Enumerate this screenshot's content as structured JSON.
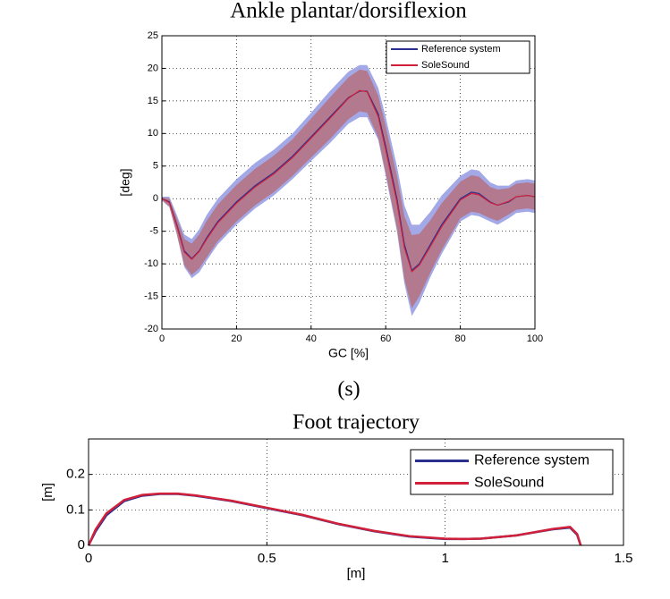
{
  "chart_data": [
    {
      "type": "line",
      "title": "Ankle plantar/dorsiflexion",
      "x_label": "GC [%]",
      "y_label": "[deg]",
      "x": [
        0,
        2,
        4,
        6,
        8,
        10,
        12,
        15,
        20,
        25,
        30,
        35,
        40,
        45,
        50,
        53,
        55,
        58,
        60,
        63,
        65,
        67,
        69,
        72,
        75,
        80,
        83,
        85,
        88,
        90,
        93,
        95,
        98,
        100
      ],
      "xlim": [
        0,
        100
      ],
      "xticks": [
        0,
        20,
        40,
        60,
        80,
        100
      ],
      "ylim": [
        -20,
        25
      ],
      "yticks": [
        -20,
        -15,
        -10,
        -5,
        0,
        5,
        10,
        15,
        20,
        25
      ],
      "grid": true,
      "legend": "upper right",
      "series": [
        {
          "name": "Reference system",
          "color": "#2b2f8f",
          "band_color": "#a3a8e6",
          "values": [
            0,
            -0.5,
            -4,
            -8,
            -9.2,
            -8,
            -6,
            -3.5,
            -0.5,
            2,
            4,
            6.5,
            9.5,
            12.5,
            15.5,
            16.5,
            16.5,
            13,
            8,
            0,
            -7,
            -11,
            -10,
            -7,
            -4,
            0,
            1,
            0.8,
            -0.5,
            -1,
            -0.5,
            0.3,
            0.5,
            0.3
          ],
          "std": [
            0.3,
            0.8,
            1.5,
            2.5,
            3,
            3.3,
            3.5,
            3.5,
            3.5,
            3.5,
            3.5,
            3.5,
            3.7,
            4,
            4,
            4,
            4,
            4,
            4.5,
            5,
            6,
            7,
            6,
            5,
            4.5,
            3.5,
            3.5,
            3.5,
            3,
            3,
            2.5,
            2.5,
            2.5,
            2.5
          ]
        },
        {
          "name": "SoleSound",
          "color": "#d0203a",
          "band_color": "#b86a72",
          "values": [
            0,
            -0.6,
            -4.2,
            -8.2,
            -9.3,
            -8.1,
            -6.2,
            -3.7,
            -0.7,
            1.8,
            3.8,
            6.3,
            9.3,
            12.3,
            15.4,
            16.6,
            16.4,
            12.6,
            7.5,
            -0.5,
            -7.5,
            -11.2,
            -10.2,
            -7.3,
            -4.3,
            -0.2,
            0.8,
            0.6,
            -0.6,
            -1,
            -0.4,
            0.3,
            0.5,
            0.3
          ],
          "std": [
            0.2,
            0.6,
            1.2,
            2,
            2.4,
            2.6,
            2.8,
            2.8,
            2.8,
            2.8,
            2.8,
            2.8,
            3,
            3.2,
            3.2,
            3.2,
            3.2,
            3.2,
            3.6,
            4,
            4.8,
            5.6,
            4.8,
            4,
            3.6,
            2.8,
            2.8,
            2.8,
            2.4,
            2.4,
            2,
            2,
            2,
            2
          ]
        }
      ]
    },
    {
      "type": "line",
      "title": "Foot trajectory",
      "x_label": "[m]",
      "y_label": "[m]",
      "xlim": [
        0,
        1.5
      ],
      "xticks": [
        0,
        0.5,
        1,
        1.5
      ],
      "ylim": [
        0,
        0.3
      ],
      "yticks": [
        0,
        0.1,
        0.2
      ],
      "grid": true,
      "legend": "upper right",
      "series": [
        {
          "name": "Reference system",
          "color": "#2b2f8f",
          "x": [
            0,
            0.02,
            0.05,
            0.1,
            0.15,
            0.2,
            0.25,
            0.3,
            0.4,
            0.5,
            0.6,
            0.7,
            0.8,
            0.9,
            1.0,
            1.05,
            1.1,
            1.2,
            1.3,
            1.35,
            1.37,
            1.38
          ],
          "values": [
            0,
            0.04,
            0.085,
            0.125,
            0.14,
            0.145,
            0.145,
            0.14,
            0.125,
            0.105,
            0.085,
            0.06,
            0.04,
            0.025,
            0.018,
            0.018,
            0.019,
            0.028,
            0.045,
            0.05,
            0.03,
            0
          ]
        },
        {
          "name": "SoleSound",
          "color": "#d0203a",
          "x": [
            0,
            0.02,
            0.05,
            0.1,
            0.15,
            0.2,
            0.25,
            0.3,
            0.4,
            0.5,
            0.6,
            0.7,
            0.8,
            0.9,
            1.0,
            1.05,
            1.1,
            1.2,
            1.3,
            1.35,
            1.37,
            1.38
          ],
          "values": [
            0,
            0.045,
            0.09,
            0.128,
            0.142,
            0.146,
            0.146,
            0.141,
            0.126,
            0.106,
            0.086,
            0.061,
            0.041,
            0.026,
            0.019,
            0.018,
            0.019,
            0.028,
            0.046,
            0.052,
            0.032,
            0
          ]
        }
      ]
    }
  ],
  "caption": "(s)"
}
